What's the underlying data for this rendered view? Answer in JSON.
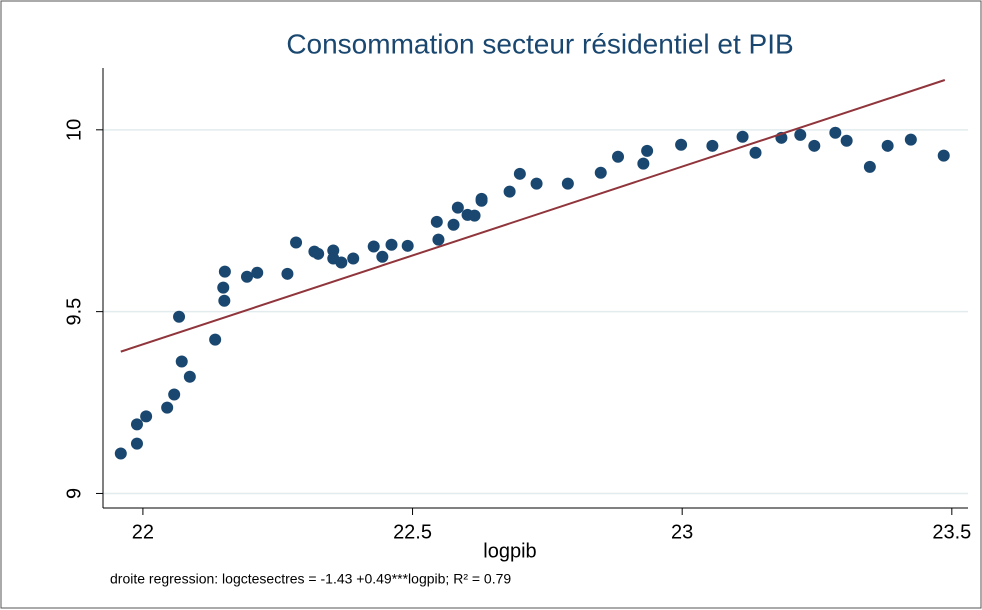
{
  "chart_data": {
    "type": "scatter",
    "title": "Consommation secteur résidentiel et PIB",
    "x_label": "logpib",
    "note": "droite regression: logctesectres = -1.43 +0.49***logpib;  R² = 0.79",
    "series": [
      {
        "color": "#1a476f",
        "x": [
          21.959,
          21.989,
          21.989,
          22.006,
          22.045,
          22.058,
          22.067,
          22.072,
          22.087,
          22.134,
          22.149,
          22.151,
          22.152,
          22.193,
          22.212,
          22.268,
          22.284,
          22.318,
          22.325,
          22.353,
          22.353,
          22.368,
          22.39,
          22.428,
          22.444,
          22.461,
          22.491,
          22.545,
          22.548,
          22.576,
          22.584,
          22.602,
          22.615,
          22.628,
          22.628,
          22.68,
          22.699,
          22.73,
          22.788,
          22.849,
          22.881,
          22.928,
          22.935,
          22.998,
          23.056,
          23.112,
          23.136,
          23.184,
          23.219,
          23.245,
          23.284,
          23.305,
          23.348,
          23.381,
          23.424,
          23.485
        ],
        "values": [
          9.11,
          9.137,
          9.19,
          9.212,
          9.236,
          9.272,
          9.486,
          9.363,
          9.321,
          9.423,
          9.566,
          9.53,
          9.61,
          9.596,
          9.607,
          9.604,
          9.69,
          9.665,
          9.659,
          9.668,
          9.646,
          9.635,
          9.646,
          9.679,
          9.651,
          9.684,
          9.681,
          9.747,
          9.698,
          9.739,
          9.786,
          9.766,
          9.764,
          9.81,
          9.805,
          9.83,
          9.879,
          9.852,
          9.852,
          9.882,
          9.926,
          9.907,
          9.942,
          9.959,
          9.956,
          9.981,
          9.937,
          9.978,
          9.986,
          9.956,
          9.992,
          9.97,
          9.898,
          9.956,
          9.973,
          9.929
        ]
      }
    ],
    "fit": {
      "color": "#90353b",
      "x": [
        21.959,
        23.487
      ],
      "values": [
        9.39,
        10.137
      ]
    },
    "xlim": [
      21.926,
      23.53
    ],
    "xticks": [
      22,
      22.5,
      23,
      23.5
    ],
    "ylim": [
      8.96,
      10.17
    ],
    "yticks": [
      9,
      9.5,
      10
    ],
    "grid": true
  }
}
